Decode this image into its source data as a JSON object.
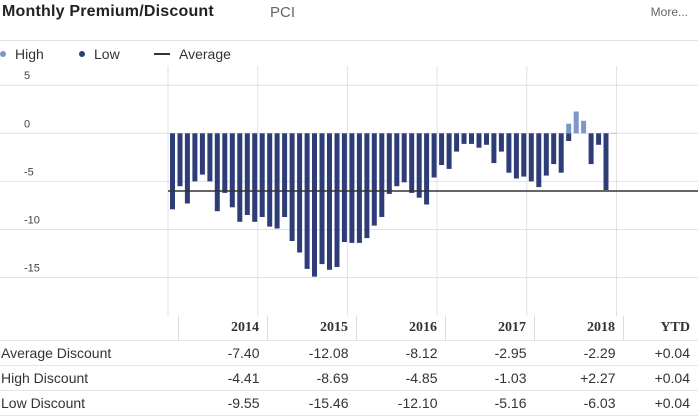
{
  "header": {
    "title": "Monthly Premium/Discount",
    "ticker": "PCI",
    "more_link": "More..."
  },
  "legend": {
    "high_label": "High",
    "low_label": "Low",
    "average_label": "Average"
  },
  "colors": {
    "high": "#7b98c8",
    "low": "#2e3d77",
    "average": "#333333",
    "grid": "#e2e2e2"
  },
  "chart_data": {
    "type": "bar",
    "ylim": [
      -19,
      7
    ],
    "yticks": [
      5,
      0,
      -5,
      -10,
      -15
    ],
    "average": -6.0,
    "years": [
      "2014",
      "2015",
      "2016",
      "2017",
      "2018",
      "YTD"
    ],
    "series": [
      {
        "name": "High",
        "values": [
          null,
          null,
          null,
          null,
          null,
          null,
          null,
          null,
          null,
          null,
          null,
          null,
          null,
          null,
          null,
          null,
          null,
          null,
          null,
          null,
          null,
          null,
          null,
          null,
          null,
          null,
          null,
          null,
          null,
          null,
          null,
          null,
          null,
          null,
          null,
          null,
          null,
          null,
          null,
          null,
          null,
          null,
          null,
          null,
          null,
          null,
          null,
          null,
          null,
          null,
          null,
          null,
          null,
          1.0,
          2.27,
          1.3,
          null,
          null,
          null,
          0.04
        ]
      },
      {
        "name": "Low",
        "values": [
          -7.9,
          -5.5,
          -7.3,
          -5.0,
          -4.3,
          -5.0,
          -8.1,
          -6.2,
          -7.7,
          -9.2,
          -8.5,
          -9.2,
          -8.7,
          -9.7,
          -9.9,
          -8.7,
          -11.2,
          -12.4,
          -14.1,
          -14.9,
          -13.6,
          -14.2,
          -13.9,
          -11.3,
          -11.4,
          -11.4,
          -10.9,
          -9.6,
          -8.7,
          -6.3,
          -5.5,
          -5.1,
          -6.2,
          -6.7,
          -7.4,
          -4.6,
          -3.3,
          -3.7,
          -1.9,
          -1.1,
          -1.1,
          -1.5,
          -1.2,
          -3.1,
          -1.9,
          -4.1,
          -4.7,
          -4.5,
          -5.0,
          -5.6,
          -4.4,
          -3.2,
          -4.1,
          -0.8,
          null,
          null,
          -3.2,
          -1.2,
          -5.9,
          null
        ]
      }
    ]
  },
  "table": {
    "columns": [
      "",
      "2014",
      "2015",
      "2016",
      "2017",
      "2018",
      "YTD"
    ],
    "rows": [
      {
        "label": "Average Discount",
        "values": [
          "-7.40",
          "-12.08",
          "-8.12",
          "-2.95",
          "-2.29",
          "+0.04"
        ]
      },
      {
        "label": "High Discount",
        "values": [
          "-4.41",
          "-8.69",
          "-4.85",
          "-1.03",
          "+2.27",
          "+0.04"
        ]
      },
      {
        "label": "Low Discount",
        "values": [
          "-9.55",
          "-15.46",
          "-12.10",
          "-5.16",
          "-6.03",
          "+0.04"
        ]
      }
    ]
  }
}
